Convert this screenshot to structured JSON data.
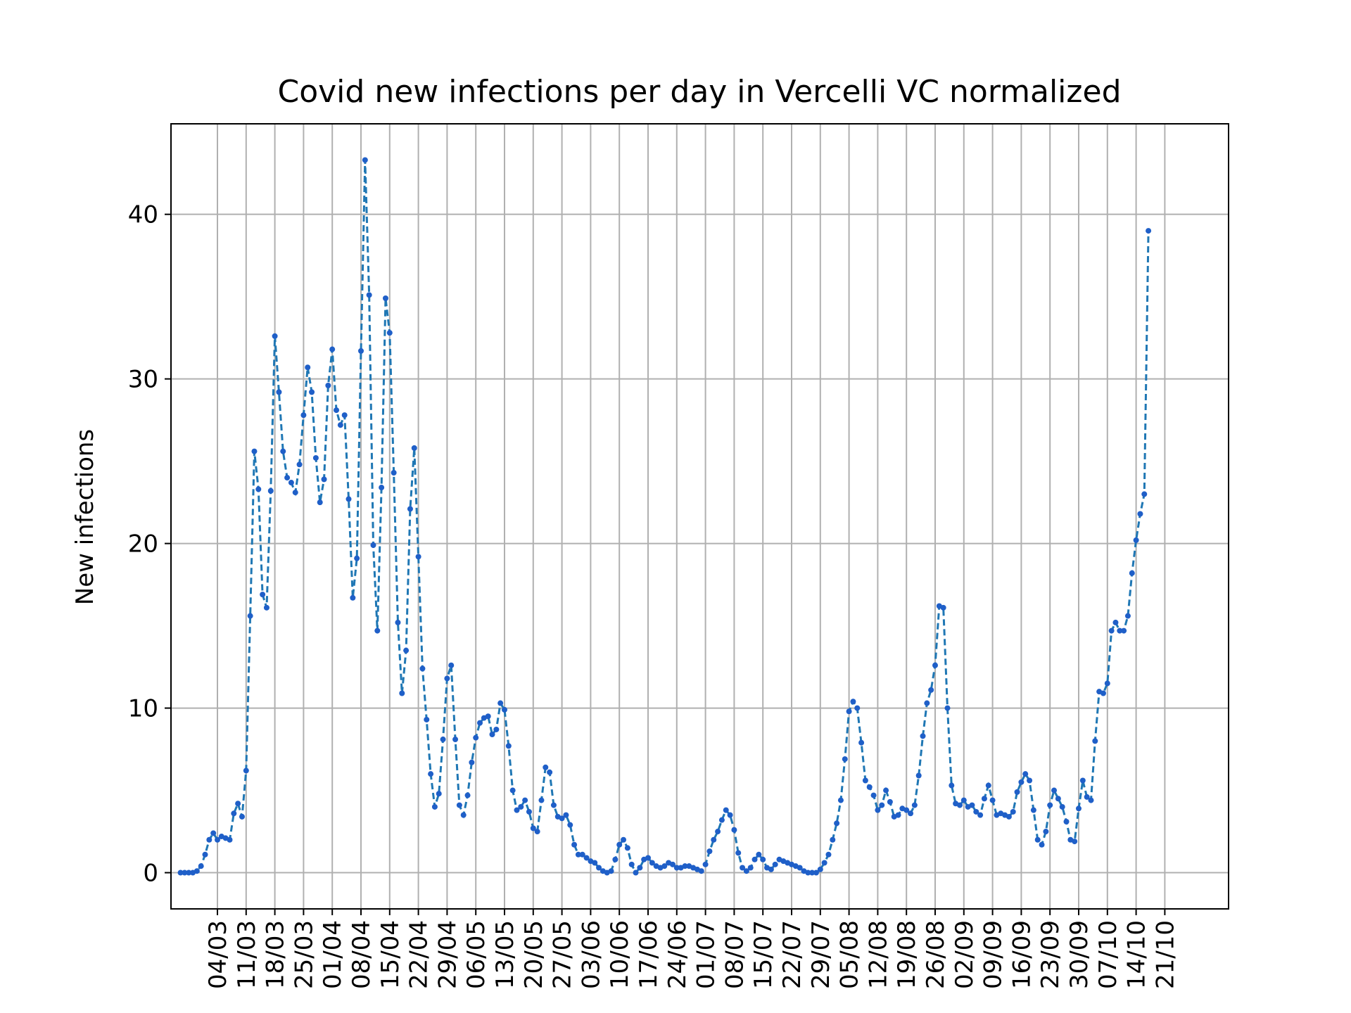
{
  "chart_data": {
    "type": "line",
    "title": "Covid new infections per day in Vercelli VC normalized",
    "xlabel": "",
    "ylabel": "New infections",
    "start_date": "2020-02-24",
    "x_ticks": [
      "04/03",
      "11/03",
      "18/03",
      "25/03",
      "01/04",
      "08/04",
      "15/04",
      "22/04",
      "29/04",
      "06/05",
      "13/05",
      "20/05",
      "27/05",
      "03/06",
      "10/06",
      "17/06",
      "24/06",
      "01/07",
      "08/07",
      "15/07",
      "22/07",
      "29/07",
      "05/08",
      "12/08",
      "19/08",
      "26/08",
      "02/09",
      "09/09",
      "16/09",
      "23/09",
      "30/09",
      "07/10",
      "14/10",
      "21/10"
    ],
    "y_ticks": [
      0,
      10,
      20,
      30,
      40
    ],
    "ylim": [
      -2.2,
      45.5
    ],
    "grid": true,
    "legend": "none",
    "line_color": "#1f77b4",
    "marker_color": "#1f5fc8",
    "series": [
      {
        "values": [
          0,
          0,
          0,
          0,
          0.1,
          0.4,
          1.1,
          2.0,
          2.4,
          2.0,
          2.2,
          2.1,
          2.0,
          3.6,
          4.2,
          3.4,
          6.2,
          15.6,
          25.6,
          23.3,
          16.9,
          16.1,
          23.2,
          32.6,
          29.2,
          25.6,
          24.0,
          23.7,
          23.1,
          24.8,
          27.8,
          30.7,
          29.2,
          25.2,
          22.5,
          23.9,
          29.6,
          31.8,
          28.1,
          27.2,
          27.8,
          22.7,
          16.7,
          19.1,
          31.7,
          43.3,
          35.1,
          19.9,
          14.7,
          23.4,
          34.9,
          32.8,
          24.3,
          15.2,
          10.9,
          13.5,
          22.1,
          25.8,
          19.2,
          12.4,
          9.3,
          6.0,
          4.0,
          4.8,
          8.1,
          11.8,
          12.6,
          8.1,
          4.1,
          3.5,
          4.7,
          6.7,
          8.2,
          9.1,
          9.4,
          9.5,
          8.4,
          8.7,
          10.3,
          9.9,
          7.7,
          5.0,
          3.8,
          4.0,
          4.4,
          3.7,
          2.7,
          2.5,
          4.4,
          6.4,
          6.1,
          4.1,
          3.4,
          3.3,
          3.5,
          2.9,
          1.7,
          1.1,
          1.1,
          0.9,
          0.7,
          0.6,
          0.3,
          0.1,
          0,
          0.1,
          0.8,
          1.7,
          2.0,
          1.5,
          0.5,
          0,
          0.3,
          0.8,
          0.9,
          0.6,
          0.4,
          0.3,
          0.4,
          0.6,
          0.5,
          0.3,
          0.3,
          0.4,
          0.4,
          0.3,
          0.2,
          0.1,
          0.5,
          1.3,
          2.0,
          2.5,
          3.2,
          3.8,
          3.5,
          2.6,
          1.2,
          0.3,
          0.1,
          0.3,
          0.8,
          1.1,
          0.8,
          0.3,
          0.2,
          0.5,
          0.8,
          0.7,
          0.6,
          0.5,
          0.4,
          0.3,
          0.1,
          0,
          0,
          0,
          0.2,
          0.6,
          1.1,
          2.0,
          3.0,
          4.4,
          6.9,
          9.8,
          10.4,
          10.0,
          7.9,
          5.6,
          5.2,
          4.7,
          3.8,
          4.1,
          5.0,
          4.3,
          3.4,
          3.5,
          3.9,
          3.8,
          3.6,
          4.1,
          5.9,
          8.3,
          10.3,
          11.1,
          12.6,
          16.2,
          16.1,
          10.0,
          5.3,
          4.2,
          4.1,
          4.4,
          4.0,
          4.1,
          3.7,
          3.5,
          4.5,
          5.3,
          4.4,
          3.5,
          3.6,
          3.5,
          3.4,
          3.7,
          4.9,
          5.5,
          6.0,
          5.6,
          3.8,
          2.0,
          1.7,
          2.5,
          4.1,
          5.0,
          4.5,
          4.0,
          3.1,
          2.0,
          1.9,
          3.9,
          5.6,
          4.6,
          4.4,
          8.0,
          11.0,
          10.9,
          11.5,
          14.7,
          15.2,
          14.7,
          14.7,
          15.6,
          18.2,
          20.2,
          21.8,
          23.0,
          39.0
        ]
      }
    ]
  }
}
